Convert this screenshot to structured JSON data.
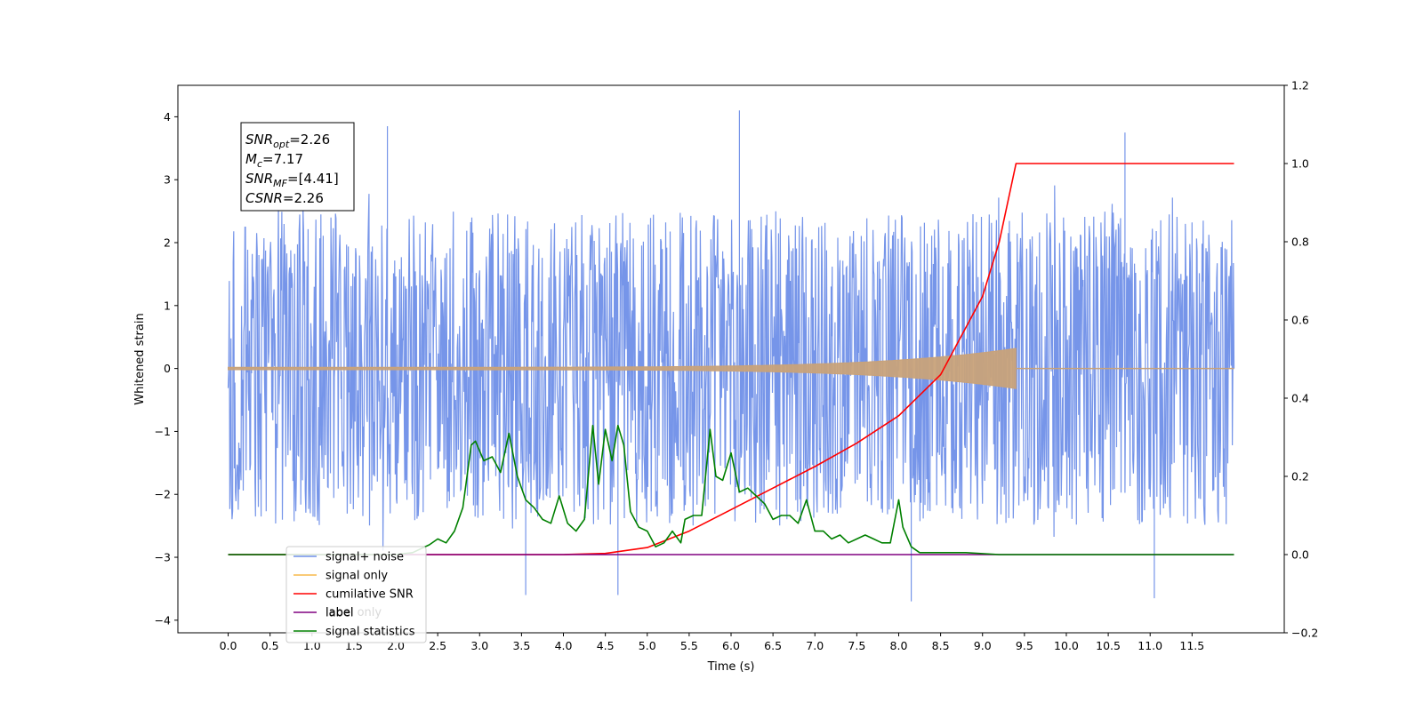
{
  "chart_data": {
    "type": "line",
    "xlabel": "Time (s)",
    "ylabel": "Whitened strain",
    "xlim": [
      -0.6,
      12.6
    ],
    "ylim": [
      -4.2,
      4.5
    ],
    "y2lim": [
      -0.2,
      1.2
    ],
    "x_ticks": [
      "0.0",
      "0.5",
      "1.0",
      "1.5",
      "2.0",
      "2.5",
      "3.0",
      "3.5",
      "4.0",
      "4.5",
      "5.0",
      "5.5",
      "6.0",
      "6.5",
      "7.0",
      "7.5",
      "8.0",
      "8.5",
      "9.0",
      "9.5",
      "10.0",
      "10.5",
      "11.0",
      "11.5"
    ],
    "y_ticks": [
      "4",
      "3",
      "2",
      "1",
      "0",
      "−1",
      "−2",
      "−3",
      "−4"
    ],
    "y2_ticks": [
      "1.2",
      "1.0",
      "0.8",
      "0.6",
      "0.4",
      "0.2",
      "0.0",
      "−0.2"
    ],
    "grid": false,
    "legend_position": "lower-left",
    "annotation": [
      {
        "name": "SNR",
        "sub": "opt",
        "value": "=2.26"
      },
      {
        "name": "M",
        "sub": "c",
        "value": "=7.17"
      },
      {
        "name": "SNR",
        "sub": "MF",
        "value": "=[4.41]"
      },
      {
        "name": "CSNR",
        "sub": "",
        "value": "=2.26"
      }
    ],
    "series": [
      {
        "name": "signal+ noise",
        "axis": "left",
        "color": "#6f8fe8",
        "x_range": [
          0.0,
          12.0
        ],
        "typical_amplitude": 2.3,
        "extreme_peaks": [
          {
            "x": 1.9,
            "y": 3.85
          },
          {
            "x": 6.1,
            "y": 4.1
          },
          {
            "x": 10.7,
            "y": 3.75
          },
          {
            "x": 3.55,
            "y": -3.6
          },
          {
            "x": 4.65,
            "y": -3.6
          },
          {
            "x": 8.15,
            "y": -3.7
          },
          {
            "x": 11.05,
            "y": -3.65
          }
        ]
      },
      {
        "name": "signal only",
        "axis": "left",
        "color": "#f7b84a",
        "x_range": [
          0.0,
          12.0
        ],
        "peak_time": 9.4,
        "peak_amplitude": 0.3
      },
      {
        "name": "cumilative SNR",
        "axis": "right",
        "color": "#ff0000",
        "x": [
          0.0,
          4.0,
          4.5,
          5.0,
          5.5,
          6.0,
          6.5,
          7.0,
          7.5,
          8.0,
          8.5,
          9.0,
          9.2,
          9.35,
          9.4,
          12.0
        ],
        "values": [
          0.0,
          0.0,
          0.003,
          0.018,
          0.06,
          0.115,
          0.17,
          0.225,
          0.285,
          0.355,
          0.46,
          0.66,
          0.8,
          0.95,
          1.0,
          1.0
        ]
      },
      {
        "name": "label",
        "axis": "right",
        "color": "#800080",
        "x": [
          0.0,
          12.0
        ],
        "values": [
          0.0,
          0.0
        ]
      },
      {
        "name": "label only",
        "axis": "right",
        "color": "#d9d9d9",
        "x": [],
        "values": []
      },
      {
        "name": "signal statistics",
        "axis": "right",
        "color": "#008000",
        "x": [
          0.0,
          2.0,
          2.2,
          2.4,
          2.5,
          2.6,
          2.7,
          2.8,
          2.9,
          2.95,
          3.05,
          3.15,
          3.25,
          3.35,
          3.45,
          3.55,
          3.65,
          3.75,
          3.85,
          3.95,
          4.05,
          4.15,
          4.25,
          4.35,
          4.42,
          4.5,
          4.58,
          4.65,
          4.72,
          4.8,
          4.9,
          5.0,
          5.1,
          5.2,
          5.3,
          5.4,
          5.45,
          5.55,
          5.65,
          5.75,
          5.82,
          5.9,
          6.0,
          6.1,
          6.2,
          6.3,
          6.4,
          6.5,
          6.6,
          6.7,
          6.8,
          6.9,
          7.0,
          7.1,
          7.2,
          7.3,
          7.4,
          7.5,
          7.6,
          7.7,
          7.8,
          7.9,
          8.0,
          8.05,
          8.15,
          8.25,
          8.35,
          8.5,
          8.8,
          9.2,
          12.0
        ],
        "values": [
          0.0,
          0.0,
          0.005,
          0.025,
          0.04,
          0.03,
          0.06,
          0.12,
          0.28,
          0.29,
          0.24,
          0.25,
          0.21,
          0.31,
          0.2,
          0.14,
          0.12,
          0.09,
          0.08,
          0.15,
          0.08,
          0.06,
          0.09,
          0.33,
          0.18,
          0.32,
          0.24,
          0.33,
          0.28,
          0.11,
          0.07,
          0.06,
          0.02,
          0.03,
          0.06,
          0.03,
          0.09,
          0.1,
          0.1,
          0.32,
          0.2,
          0.19,
          0.26,
          0.16,
          0.17,
          0.15,
          0.13,
          0.09,
          0.1,
          0.1,
          0.08,
          0.14,
          0.06,
          0.06,
          0.04,
          0.05,
          0.03,
          0.04,
          0.05,
          0.04,
          0.03,
          0.03,
          0.14,
          0.07,
          0.02,
          0.005,
          0.005,
          0.005,
          0.005,
          0.0,
          0.0
        ]
      }
    ]
  }
}
